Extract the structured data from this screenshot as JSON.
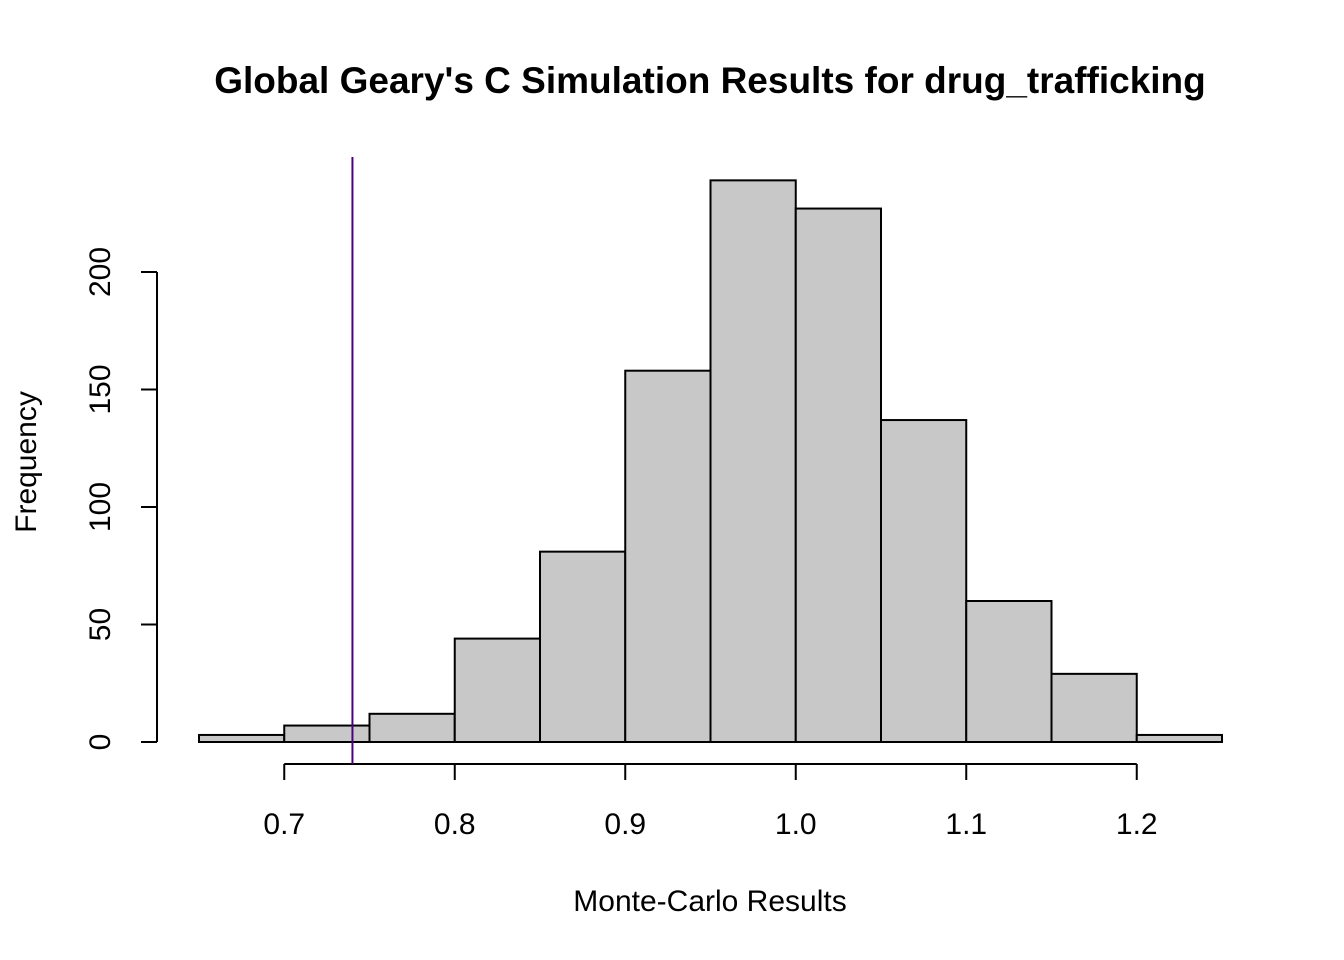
{
  "chart_data": {
    "type": "bar",
    "title": "Global Geary's C Simulation Results for drug_trafficking",
    "xlabel": "Monte-Carlo Results",
    "ylabel": "Frequency",
    "bins": [
      {
        "x0": 0.65,
        "x1": 0.7,
        "count": 3
      },
      {
        "x0": 0.7,
        "x1": 0.75,
        "count": 7
      },
      {
        "x0": 0.75,
        "x1": 0.8,
        "count": 12
      },
      {
        "x0": 0.8,
        "x1": 0.85,
        "count": 44
      },
      {
        "x0": 0.85,
        "x1": 0.9,
        "count": 81
      },
      {
        "x0": 0.9,
        "x1": 0.95,
        "count": 158
      },
      {
        "x0": 0.95,
        "x1": 1.0,
        "count": 239
      },
      {
        "x0": 1.0,
        "x1": 1.05,
        "count": 227
      },
      {
        "x0": 1.05,
        "x1": 1.1,
        "count": 137
      },
      {
        "x0": 1.1,
        "x1": 1.15,
        "count": 60
      },
      {
        "x0": 1.15,
        "x1": 1.2,
        "count": 29
      },
      {
        "x0": 1.2,
        "x1": 1.25,
        "count": 3
      }
    ],
    "x_ticks": [
      0.7,
      0.8,
      0.9,
      1.0,
      1.1,
      1.2
    ],
    "x_tick_labels": [
      "0.7",
      "0.8",
      "0.9",
      "1.0",
      "1.1",
      "1.2"
    ],
    "y_ticks": [
      0,
      50,
      100,
      150,
      200
    ],
    "y_tick_labels": [
      "0",
      "50",
      "100",
      "150",
      "200"
    ],
    "observed_value": 0.74,
    "xlim": [
      0.65,
      1.25
    ],
    "ylim": [
      0,
      240
    ],
    "grid": false,
    "colors": {
      "bar_fill": "#c8c8c8",
      "bar_stroke": "#000000",
      "observed_line": "#4b0082"
    }
  }
}
